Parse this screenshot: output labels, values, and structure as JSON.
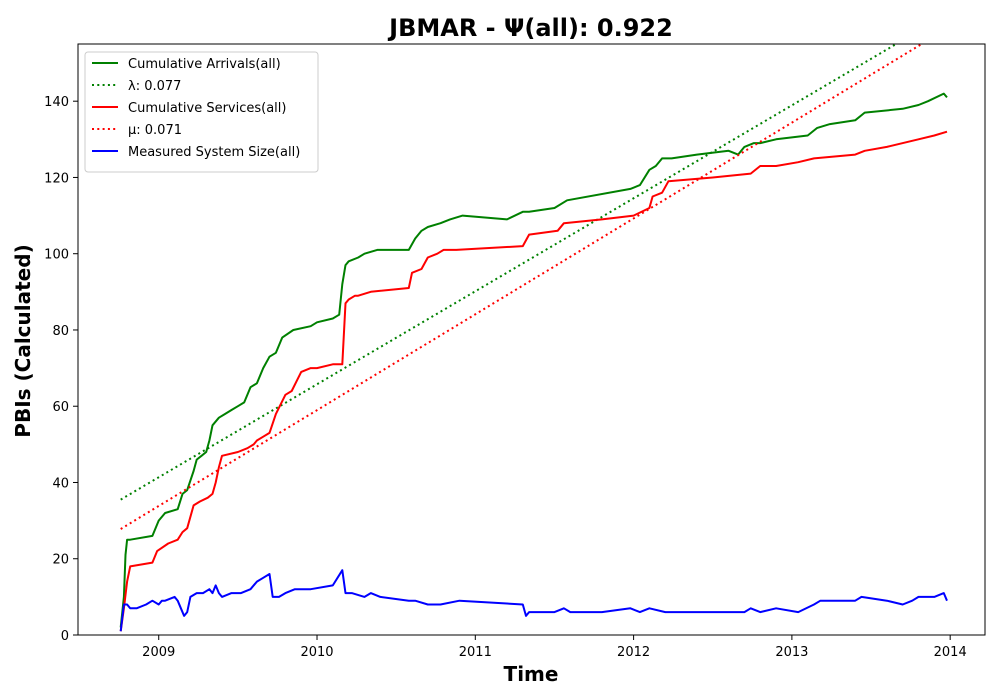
{
  "chart_data": {
    "type": "line",
    "title": "JBMAR -  Ψ(all): 0.922",
    "xlabel": "Time",
    "ylabel": "PBIs (Calculated)",
    "xlim": [
      2008.49,
      2014.22
    ],
    "ylim": [
      0,
      155
    ],
    "x_ticks": [
      2009,
      2010,
      2011,
      2012,
      2013,
      2014
    ],
    "x_tick_labels": [
      "2009",
      "2010",
      "2011",
      "2012",
      "2013",
      "2014"
    ],
    "y_ticks": [
      0,
      20,
      40,
      60,
      80,
      100,
      120,
      140
    ],
    "y_tick_labels": [
      "0",
      "20",
      "40",
      "60",
      "80",
      "100",
      "120",
      "140"
    ],
    "grid": false,
    "legend_position": "upper-left",
    "series": [
      {
        "name": "Cumulative Arrivals(all)",
        "color": "#008000",
        "style": "solid",
        "x": [
          2008.76,
          2008.78,
          2008.79,
          2008.8,
          2008.82,
          2008.96,
          2009.0,
          2009.04,
          2009.12,
          2009.15,
          2009.18,
          2009.22,
          2009.24,
          2009.27,
          2009.3,
          2009.32,
          2009.34,
          2009.38,
          2009.42,
          2009.46,
          2009.5,
          2009.54,
          2009.58,
          2009.62,
          2009.66,
          2009.7,
          2009.74,
          2009.78,
          2009.85,
          2009.96,
          2010.0,
          2010.1,
          2010.14,
          2010.16,
          2010.18,
          2010.2,
          2010.26,
          2010.3,
          2010.38,
          2010.58,
          2010.62,
          2010.66,
          2010.7,
          2010.78,
          2010.84,
          2010.92,
          2011.2,
          2011.3,
          2011.34,
          2011.5,
          2011.58,
          2011.98,
          2012.04,
          2012.1,
          2012.14,
          2012.18,
          2012.24,
          2012.4,
          2012.6,
          2012.66,
          2012.7,
          2012.76,
          2012.8,
          2012.9,
          2013.1,
          2013.16,
          2013.24,
          2013.4,
          2013.46,
          2013.7,
          2013.8,
          2013.86,
          2013.96,
          2013.98
        ],
        "y": [
          2,
          10,
          21,
          25,
          25,
          26,
          30,
          32,
          33,
          37,
          38,
          43,
          46,
          47,
          48,
          51,
          55,
          57,
          58,
          59,
          60,
          61,
          65,
          66,
          70,
          73,
          74,
          78,
          80,
          81,
          82,
          83,
          84,
          92,
          97,
          98,
          99,
          100,
          101,
          101,
          104,
          106,
          107,
          108,
          109,
          110,
          109,
          111,
          111,
          112,
          114,
          117,
          118,
          122,
          123,
          125,
          125,
          126,
          127,
          126,
          128,
          129,
          129,
          130,
          131,
          133,
          134,
          135,
          137,
          138,
          139,
          140,
          142,
          141
        ]
      },
      {
        "name": "λ: 0.077",
        "color": "#008000",
        "style": "dotted",
        "x": [
          2008.76,
          2013.7
        ],
        "y": [
          35.5,
          156
        ]
      },
      {
        "name": "Cumulative Services(all)",
        "color": "#ff0000",
        "style": "solid",
        "x": [
          2008.76,
          2008.78,
          2008.8,
          2008.82,
          2008.96,
          2008.99,
          2009.06,
          2009.12,
          2009.15,
          2009.18,
          2009.22,
          2009.26,
          2009.31,
          2009.34,
          2009.36,
          2009.38,
          2009.4,
          2009.5,
          2009.56,
          2009.6,
          2009.62,
          2009.66,
          2009.7,
          2009.74,
          2009.8,
          2009.84,
          2009.9,
          2009.96,
          2010.0,
          2010.1,
          2010.16,
          2010.18,
          2010.2,
          2010.24,
          2010.26,
          2010.34,
          2010.58,
          2010.6,
          2010.66,
          2010.7,
          2010.76,
          2010.8,
          2010.88,
          2011.3,
          2011.34,
          2011.52,
          2011.56,
          2011.8,
          2012.0,
          2012.1,
          2012.12,
          2012.18,
          2012.22,
          2012.5,
          2012.74,
          2012.8,
          2012.9,
          2013.04,
          2013.14,
          2013.4,
          2013.46,
          2013.6,
          2013.8,
          2013.9,
          2013.98
        ],
        "y": [
          1,
          7,
          14,
          18,
          19,
          22,
          24,
          25,
          27,
          28,
          34,
          35,
          36,
          37,
          40,
          44,
          47,
          48,
          49,
          50,
          51,
          52,
          53,
          58,
          63,
          64,
          69,
          70,
          70,
          71,
          71,
          87,
          88,
          89,
          89,
          90,
          91,
          95,
          96,
          99,
          100,
          101,
          101,
          102,
          105,
          106,
          108,
          109,
          110,
          112,
          115,
          116,
          119,
          120,
          121,
          123,
          123,
          124,
          125,
          126,
          127,
          128,
          130,
          131,
          132
        ]
      },
      {
        "name": "μ: 0.071",
        "color": "#ff0000",
        "style": "dotted",
        "x": [
          2008.76,
          2013.86
        ],
        "y": [
          27.8,
          156
        ]
      },
      {
        "name": "Measured System Size(all)",
        "color": "#0000ff",
        "style": "solid",
        "x": [
          2008.76,
          2008.78,
          2008.8,
          2008.82,
          2008.86,
          2008.92,
          2008.96,
          2009.0,
          2009.02,
          2009.04,
          2009.1,
          2009.12,
          2009.14,
          2009.16,
          2009.18,
          2009.2,
          2009.24,
          2009.28,
          2009.32,
          2009.34,
          2009.36,
          2009.38,
          2009.4,
          2009.46,
          2009.52,
          2009.58,
          2009.62,
          2009.66,
          2009.7,
          2009.72,
          2009.76,
          2009.8,
          2009.86,
          2009.96,
          2010.1,
          2010.16,
          2010.18,
          2010.22,
          2010.3,
          2010.34,
          2010.4,
          2010.58,
          2010.62,
          2010.7,
          2010.78,
          2010.9,
          2011.3,
          2011.32,
          2011.34,
          2011.5,
          2011.56,
          2011.6,
          2011.8,
          2011.98,
          2012.04,
          2012.1,
          2012.2,
          2012.3,
          2012.5,
          2012.6,
          2012.7,
          2012.74,
          2012.8,
          2012.9,
          2013.04,
          2013.14,
          2013.18,
          2013.4,
          2013.44,
          2013.6,
          2013.7,
          2013.76,
          2013.8,
          2013.9,
          2013.96,
          2013.98
        ],
        "y": [
          1,
          8,
          8,
          7,
          7,
          8,
          9,
          8,
          9,
          9,
          10,
          9,
          7,
          5,
          6,
          10,
          11,
          11,
          12,
          11,
          13,
          11,
          10,
          11,
          11,
          12,
          14,
          15,
          16,
          10,
          10,
          11,
          12,
          12,
          13,
          17,
          11,
          11,
          10,
          11,
          10,
          9,
          9,
          8,
          8,
          9,
          8,
          5,
          6,
          6,
          7,
          6,
          6,
          7,
          6,
          7,
          6,
          6,
          6,
          6,
          6,
          7,
          6,
          7,
          6,
          8,
          9,
          9,
          10,
          9,
          8,
          9,
          10,
          10,
          11,
          9
        ]
      }
    ]
  }
}
